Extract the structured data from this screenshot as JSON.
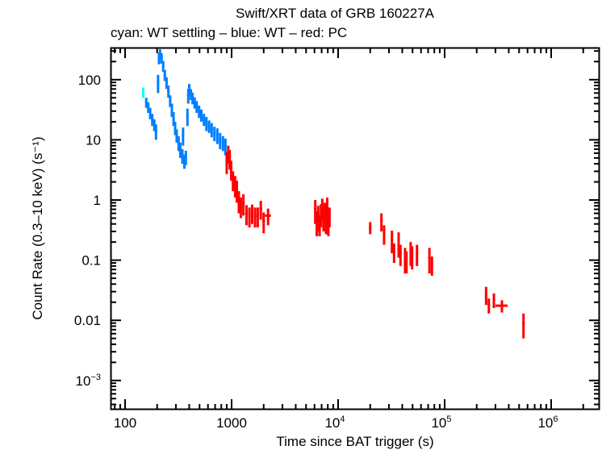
{
  "chart_data": {
    "type": "scatter",
    "title": "Swift/XRT data of GRB 160227A",
    "subtitle": "cyan: WT settling – blue: WT – red: PC",
    "xlabel": "Time since BAT trigger (s)",
    "ylabel": "Count Rate (0.3–10 keV) (s⁻¹)",
    "xscale": "log",
    "yscale": "log",
    "xlim": [
      70,
      2800000
    ],
    "ylim": [
      0.00032,
      330
    ],
    "grid": false,
    "x_ticks": [
      {
        "value": 100,
        "label": "100",
        "sup": ""
      },
      {
        "value": 1000,
        "label": "1000",
        "sup": ""
      },
      {
        "value": 10000,
        "label": "10",
        "sup": "4"
      },
      {
        "value": 100000,
        "label": "10",
        "sup": "5"
      },
      {
        "value": 1000000,
        "label": "10",
        "sup": "6"
      }
    ],
    "y_ticks": [
      {
        "value": 100,
        "label": "100",
        "sup": ""
      },
      {
        "value": 10,
        "label": "10",
        "sup": ""
      },
      {
        "value": 1,
        "label": "1",
        "sup": ""
      },
      {
        "value": 0.1,
        "label": "0.1",
        "sup": ""
      },
      {
        "value": 0.01,
        "label": "0.01",
        "sup": ""
      },
      {
        "value": 0.001,
        "label": "10",
        "sup": "−3"
      }
    ],
    "series": [
      {
        "name": "WT settling",
        "color": "#00ffff",
        "points": [
          {
            "t": 148,
            "dt": 2,
            "rate": 62,
            "err": 12
          }
        ]
      },
      {
        "name": "WT",
        "color": "#0080ff",
        "points": [
          {
            "t": 158,
            "dt": 3,
            "rate": 42,
            "err": 8
          },
          {
            "t": 165,
            "dt": 3,
            "rate": 35,
            "err": 7
          },
          {
            "t": 172,
            "dt": 3,
            "rate": 28,
            "err": 6
          },
          {
            "t": 180,
            "dt": 3,
            "rate": 22,
            "err": 5
          },
          {
            "t": 188,
            "dt": 3,
            "rate": 18,
            "err": 4
          },
          {
            "t": 195,
            "dt": 3,
            "rate": 14,
            "err": 4
          },
          {
            "t": 204,
            "dt": 2,
            "rate": 90,
            "err": 30
          },
          {
            "t": 208,
            "dt": 3,
            "rate": 230,
            "err": 50
          },
          {
            "t": 213,
            "dt": 3,
            "rate": 270,
            "err": 50
          },
          {
            "t": 220,
            "dt": 3,
            "rate": 230,
            "err": 45
          },
          {
            "t": 228,
            "dt": 3,
            "rate": 170,
            "err": 35
          },
          {
            "t": 236,
            "dt": 3,
            "rate": 120,
            "err": 25
          },
          {
            "t": 245,
            "dt": 3,
            "rate": 90,
            "err": 20
          },
          {
            "t": 255,
            "dt": 3,
            "rate": 65,
            "err": 15
          },
          {
            "t": 265,
            "dt": 3,
            "rate": 45,
            "err": 10
          },
          {
            "t": 275,
            "dt": 3,
            "rate": 32,
            "err": 8
          },
          {
            "t": 285,
            "dt": 3,
            "rate": 23,
            "err": 6
          },
          {
            "t": 295,
            "dt": 3,
            "rate": 16,
            "err": 4
          },
          {
            "t": 305,
            "dt": 3,
            "rate": 12,
            "err": 3
          },
          {
            "t": 318,
            "dt": 4,
            "rate": 9,
            "err": 2.5
          },
          {
            "t": 330,
            "dt": 4,
            "rate": 7,
            "err": 2
          },
          {
            "t": 345,
            "dt": 4,
            "rate": 5.5,
            "err": 1.5
          },
          {
            "t": 360,
            "dt": 4,
            "rate": 4.5,
            "err": 1.2
          },
          {
            "t": 372,
            "dt": 4,
            "rate": 5.2,
            "err": 1.4
          },
          {
            "t": 350,
            "dt": 2,
            "rate": 12,
            "err": 4
          },
          {
            "t": 385,
            "dt": 4,
            "rate": 25,
            "err": 8
          },
          {
            "t": 392,
            "dt": 4,
            "rate": 55,
            "err": 15
          },
          {
            "t": 400,
            "dt": 5,
            "rate": 70,
            "err": 15
          },
          {
            "t": 415,
            "dt": 6,
            "rate": 58,
            "err": 12
          },
          {
            "t": 430,
            "dt": 6,
            "rate": 50,
            "err": 11
          },
          {
            "t": 450,
            "dt": 7,
            "rate": 42,
            "err": 9
          },
          {
            "t": 470,
            "dt": 8,
            "rate": 36,
            "err": 8
          },
          {
            "t": 495,
            "dt": 8,
            "rate": 30,
            "err": 7
          },
          {
            "t": 520,
            "dt": 9,
            "rate": 26,
            "err": 6
          },
          {
            "t": 550,
            "dt": 10,
            "rate": 22,
            "err": 5
          },
          {
            "t": 580,
            "dt": 10,
            "rate": 19,
            "err": 5
          },
          {
            "t": 615,
            "dt": 12,
            "rate": 17,
            "err": 4
          },
          {
            "t": 650,
            "dt": 12,
            "rate": 15,
            "err": 4
          },
          {
            "t": 690,
            "dt": 14,
            "rate": 13,
            "err": 3.5
          },
          {
            "t": 735,
            "dt": 15,
            "rate": 12,
            "err": 3.5
          },
          {
            "t": 780,
            "dt": 15,
            "rate": 10,
            "err": 3
          },
          {
            "t": 830,
            "dt": 18,
            "rate": 9,
            "err": 2.5
          },
          {
            "t": 875,
            "dt": 15,
            "rate": 8,
            "err": 2.5
          }
        ]
      },
      {
        "name": "PC",
        "color": "#ff0000",
        "points": [
          {
            "t": 900,
            "dt": 20,
            "rate": 4.5,
            "err": 1.8
          },
          {
            "t": 930,
            "dt": 20,
            "rate": 6,
            "err": 2
          },
          {
            "t": 960,
            "dt": 20,
            "rate": 5,
            "err": 1.8
          },
          {
            "t": 990,
            "dt": 20,
            "rate": 3.3,
            "err": 1.2
          },
          {
            "t": 1030,
            "dt": 25,
            "rate": 2.2,
            "err": 0.8
          },
          {
            "t": 1080,
            "dt": 25,
            "rate": 1.8,
            "err": 0.7
          },
          {
            "t": 1120,
            "dt": 25,
            "rate": 1.5,
            "err": 0.6
          },
          {
            "t": 1170,
            "dt": 30,
            "rate": 1.0,
            "err": 0.4
          },
          {
            "t": 1220,
            "dt": 30,
            "rate": 0.8,
            "err": 0.3
          },
          {
            "t": 1290,
            "dt": 35,
            "rate": 0.9,
            "err": 0.35
          },
          {
            "t": 1380,
            "dt": 40,
            "rate": 0.6,
            "err": 0.22
          },
          {
            "t": 1470,
            "dt": 40,
            "rate": 0.55,
            "err": 0.2
          },
          {
            "t": 1560,
            "dt": 45,
            "rate": 0.62,
            "err": 0.22
          },
          {
            "t": 1660,
            "dt": 45,
            "rate": 0.55,
            "err": 0.2
          },
          {
            "t": 1760,
            "dt": 50,
            "rate": 0.55,
            "err": 0.2
          },
          {
            "t": 1880,
            "dt": 55,
            "rate": 0.72,
            "err": 0.25
          },
          {
            "t": 2000,
            "dt": 60,
            "rate": 0.45,
            "err": 0.17
          },
          {
            "t": 2200,
            "dt": 140,
            "rate": 0.55,
            "err": 0.17
          },
          {
            "t": 6100,
            "dt": 80,
            "rate": 0.7,
            "err": 0.3
          },
          {
            "t": 6300,
            "dt": 80,
            "rate": 0.45,
            "err": 0.2
          },
          {
            "t": 6500,
            "dt": 80,
            "rate": 0.55,
            "err": 0.25
          },
          {
            "t": 6700,
            "dt": 80,
            "rate": 0.4,
            "err": 0.15
          },
          {
            "t": 6900,
            "dt": 80,
            "rate": 0.6,
            "err": 0.25
          },
          {
            "t": 7100,
            "dt": 80,
            "rate": 0.75,
            "err": 0.3
          },
          {
            "t": 7300,
            "dt": 80,
            "rate": 0.5,
            "err": 0.2
          },
          {
            "t": 7500,
            "dt": 80,
            "rate": 0.65,
            "err": 0.25
          },
          {
            "t": 7700,
            "dt": 80,
            "rate": 0.45,
            "err": 0.18
          },
          {
            "t": 7900,
            "dt": 80,
            "rate": 0.8,
            "err": 0.3
          },
          {
            "t": 8100,
            "dt": 80,
            "rate": 0.4,
            "err": 0.15
          },
          {
            "t": 8300,
            "dt": 80,
            "rate": 0.55,
            "err": 0.2
          },
          {
            "t": 20000,
            "dt": 400,
            "rate": 0.35,
            "err": 0.08
          },
          {
            "t": 25500,
            "dt": 300,
            "rate": 0.45,
            "err": 0.15
          },
          {
            "t": 27000,
            "dt": 300,
            "rate": 0.28,
            "err": 0.1
          },
          {
            "t": 32000,
            "dt": 300,
            "rate": 0.22,
            "err": 0.09
          },
          {
            "t": 33500,
            "dt": 300,
            "rate": 0.14,
            "err": 0.05
          },
          {
            "t": 37000,
            "dt": 300,
            "rate": 0.2,
            "err": 0.09
          },
          {
            "t": 38500,
            "dt": 300,
            "rate": 0.13,
            "err": 0.05
          },
          {
            "t": 42500,
            "dt": 300,
            "rate": 0.11,
            "err": 0.05
          },
          {
            "t": 43800,
            "dt": 300,
            "rate": 0.1,
            "err": 0.04
          },
          {
            "t": 48000,
            "dt": 300,
            "rate": 0.14,
            "err": 0.06
          },
          {
            "t": 49500,
            "dt": 300,
            "rate": 0.12,
            "err": 0.05
          },
          {
            "t": 55000,
            "dt": 300,
            "rate": 0.13,
            "err": 0.05
          },
          {
            "t": 72000,
            "dt": 400,
            "rate": 0.11,
            "err": 0.05
          },
          {
            "t": 76000,
            "dt": 400,
            "rate": 0.085,
            "err": 0.03
          },
          {
            "t": 245000,
            "dt": 5000,
            "rate": 0.027,
            "err": 0.009
          },
          {
            "t": 260000,
            "dt": 6000,
            "rate": 0.018,
            "err": 0.005
          },
          {
            "t": 290000,
            "dt": 8000,
            "rate": 0.022,
            "err": 0.006
          },
          {
            "t": 345000,
            "dt": 45000,
            "rate": 0.0175,
            "err": 0.004
          },
          {
            "t": 550000,
            "dt": 4000,
            "rate": 0.009,
            "err": 0.004
          }
        ]
      }
    ]
  }
}
